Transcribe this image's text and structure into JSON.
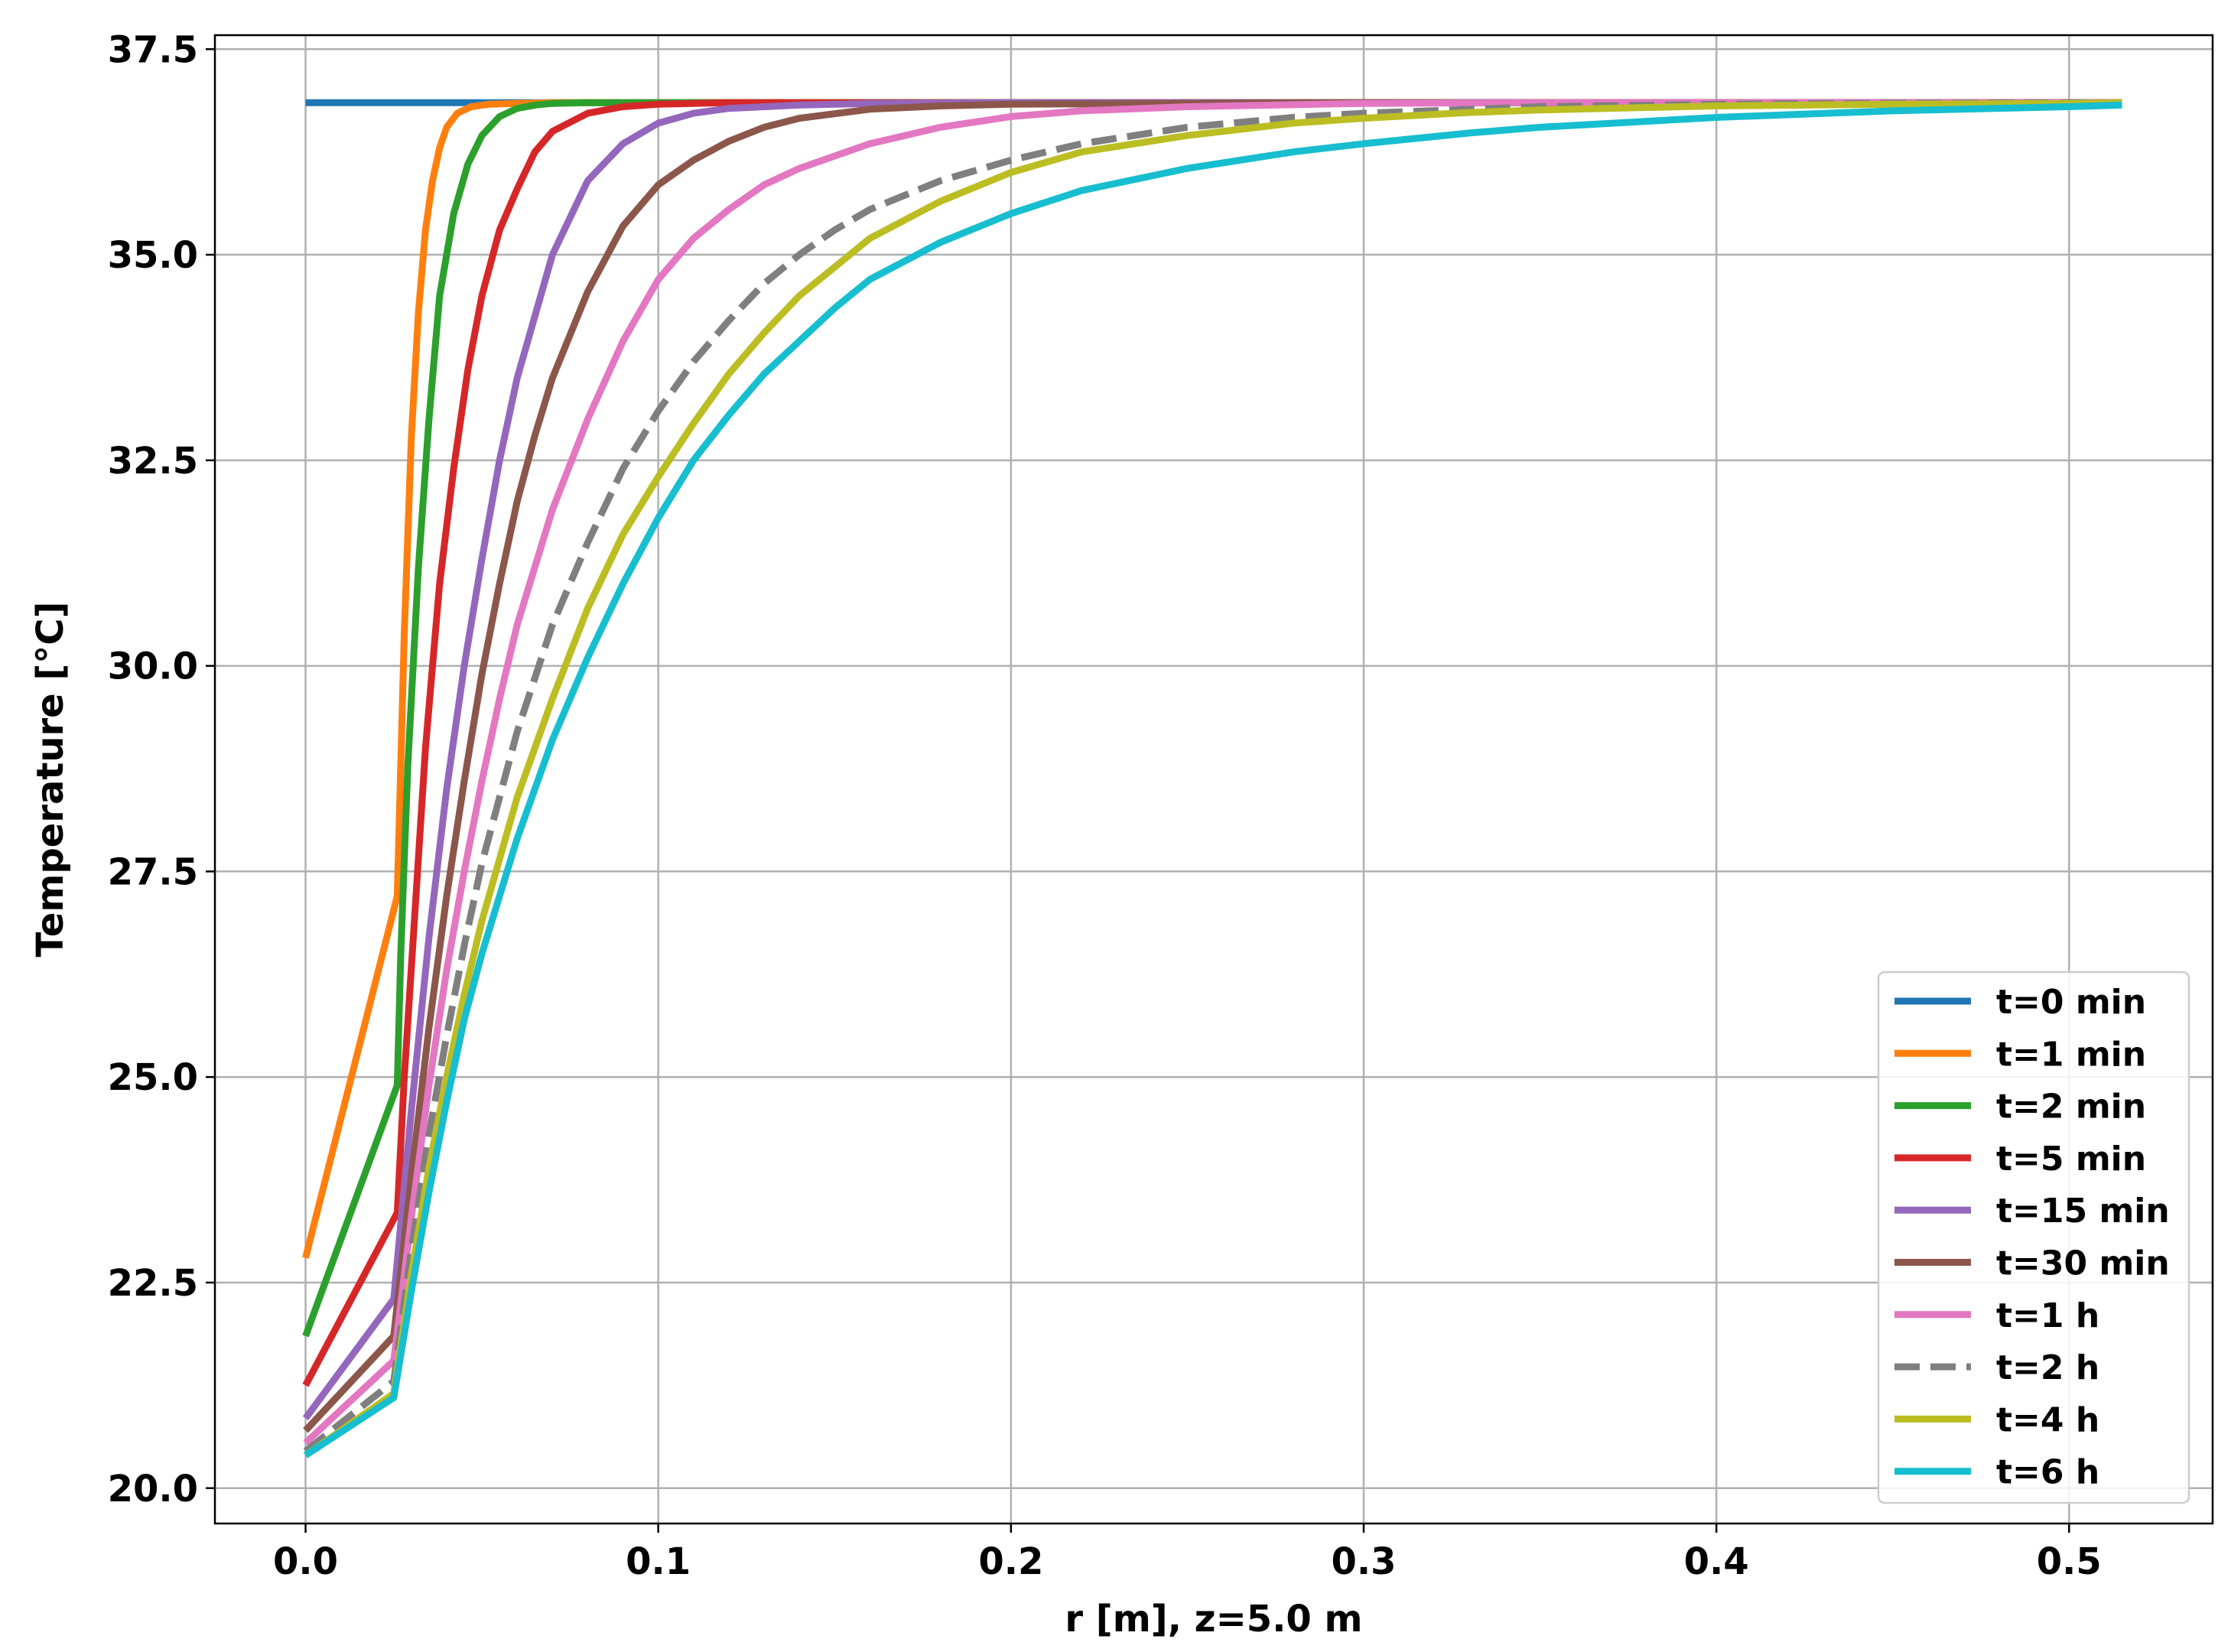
{
  "chart_data": {
    "type": "line",
    "title": "",
    "xlabel": "r [m], z=5.0 m",
    "ylabel": "Temperature [°C]",
    "xlim": [
      -0.0257,
      0.5407
    ],
    "ylim": [
      19.57,
      37.67
    ],
    "xticks": [
      0.0,
      0.1,
      0.2,
      0.3,
      0.4,
      0.5
    ],
    "xtick_labels": [
      "0.0",
      "0.1",
      "0.2",
      "0.3",
      "0.4",
      "0.5"
    ],
    "yticks": [
      20.0,
      22.5,
      25.0,
      27.5,
      30.0,
      32.5,
      35.0,
      37.5
    ],
    "ytick_labels": [
      "20.0",
      "22.5",
      "25.0",
      "27.5",
      "30.0",
      "32.5",
      "35.0",
      "37.5"
    ],
    "grid": true,
    "legend_position": "lower-right",
    "series": [
      {
        "name": "t=0 min",
        "color": "#1f77b4",
        "dash": false,
        "x": [
          0,
          0.026,
          0.1,
          0.2,
          0.3,
          0.4,
          0.515
        ],
        "y": [
          36.85,
          36.85,
          36.85,
          36.85,
          36.85,
          36.85,
          36.85
        ]
      },
      {
        "name": "t=1 min",
        "color": "#ff7f0e",
        "dash": false,
        "x": [
          0,
          0.026,
          0.028,
          0.03,
          0.032,
          0.034,
          0.036,
          0.038,
          0.04,
          0.043,
          0.047,
          0.052,
          0.06,
          0.07,
          0.1,
          0.2,
          0.3,
          0.4,
          0.515
        ],
        "y": [
          22.8,
          27.2,
          30.4,
          32.8,
          34.3,
          35.3,
          35.9,
          36.3,
          36.55,
          36.72,
          36.8,
          36.83,
          36.84,
          36.85,
          36.85,
          36.85,
          36.85,
          36.85,
          36.85
        ]
      },
      {
        "name": "t=2 min",
        "color": "#2ca02c",
        "dash": false,
        "x": [
          0,
          0.026,
          0.027,
          0.029,
          0.032,
          0.035,
          0.038,
          0.042,
          0.046,
          0.05,
          0.055,
          0.06,
          0.065,
          0.07,
          0.08,
          0.1,
          0.2,
          0.3,
          0.4,
          0.515
        ],
        "y": [
          21.85,
          24.9,
          26.5,
          28.8,
          31.2,
          33.0,
          34.5,
          35.5,
          36.1,
          36.45,
          36.68,
          36.78,
          36.82,
          36.84,
          36.85,
          36.85,
          36.85,
          36.85,
          36.85,
          36.85
        ]
      },
      {
        "name": "t=5 min",
        "color": "#d62728",
        "dash": false,
        "x": [
          0,
          0.026,
          0.028,
          0.031,
          0.034,
          0.038,
          0.042,
          0.046,
          0.05,
          0.055,
          0.06,
          0.065,
          0.07,
          0.08,
          0.09,
          0.1,
          0.12,
          0.2,
          0.3,
          0.4,
          0.515
        ],
        "y": [
          21.25,
          23.35,
          25.0,
          27.0,
          29.0,
          31.0,
          32.4,
          33.6,
          34.5,
          35.3,
          35.8,
          36.25,
          36.5,
          36.72,
          36.8,
          36.83,
          36.85,
          36.85,
          36.85,
          36.85,
          36.85
        ]
      },
      {
        "name": "t=15 min",
        "color": "#9467bd",
        "dash": false,
        "x": [
          0,
          0.025,
          0.03,
          0.035,
          0.04,
          0.045,
          0.05,
          0.055,
          0.06,
          0.07,
          0.08,
          0.09,
          0.1,
          0.11,
          0.12,
          0.14,
          0.16,
          0.2,
          0.3,
          0.4,
          0.515
        ],
        "y": [
          20.85,
          22.3,
          24.6,
          26.7,
          28.5,
          30.0,
          31.3,
          32.5,
          33.5,
          35.0,
          35.9,
          36.35,
          36.6,
          36.72,
          36.78,
          36.82,
          36.84,
          36.85,
          36.85,
          36.85,
          36.85
        ]
      },
      {
        "name": "t=30 min",
        "color": "#8c564b",
        "dash": false,
        "x": [
          0,
          0.025,
          0.03,
          0.035,
          0.04,
          0.045,
          0.05,
          0.055,
          0.06,
          0.065,
          0.07,
          0.08,
          0.09,
          0.1,
          0.11,
          0.12,
          0.13,
          0.14,
          0.16,
          0.18,
          0.2,
          0.25,
          0.3,
          0.4,
          0.515
        ],
        "y": [
          20.7,
          21.85,
          23.8,
          25.6,
          27.2,
          28.6,
          29.9,
          31.0,
          32.0,
          32.8,
          33.5,
          34.55,
          35.35,
          35.85,
          36.15,
          36.38,
          36.55,
          36.66,
          36.77,
          36.81,
          36.83,
          36.84,
          36.85,
          36.85,
          36.85
        ]
      },
      {
        "name": "t=1 h",
        "color": "#e377c2",
        "dash": false,
        "x": [
          0,
          0.025,
          0.03,
          0.035,
          0.04,
          0.045,
          0.05,
          0.055,
          0.06,
          0.07,
          0.08,
          0.09,
          0.1,
          0.11,
          0.12,
          0.13,
          0.14,
          0.15,
          0.16,
          0.18,
          0.2,
          0.22,
          0.25,
          0.3,
          0.35,
          0.4,
          0.515
        ],
        "y": [
          20.55,
          21.55,
          23.3,
          24.9,
          26.3,
          27.5,
          28.6,
          29.6,
          30.5,
          31.9,
          33.0,
          33.95,
          34.7,
          35.2,
          35.55,
          35.85,
          36.05,
          36.2,
          36.35,
          36.55,
          36.68,
          36.75,
          36.8,
          36.84,
          36.85,
          36.85,
          36.85
        ]
      },
      {
        "name": "t=2 h",
        "color": "#7f7f7f",
        "dash": true,
        "x": [
          0,
          0.025,
          0.03,
          0.035,
          0.04,
          0.045,
          0.05,
          0.06,
          0.07,
          0.08,
          0.09,
          0.1,
          0.11,
          0.12,
          0.13,
          0.14,
          0.15,
          0.16,
          0.18,
          0.2,
          0.22,
          0.25,
          0.28,
          0.3,
          0.35,
          0.4,
          0.45,
          0.515
        ],
        "y": [
          20.45,
          21.3,
          22.9,
          24.3,
          25.5,
          26.6,
          27.6,
          29.2,
          30.5,
          31.5,
          32.4,
          33.1,
          33.7,
          34.2,
          34.65,
          35.0,
          35.3,
          35.55,
          35.9,
          36.15,
          36.35,
          36.55,
          36.67,
          36.72,
          36.8,
          36.83,
          36.84,
          36.85
        ]
      },
      {
        "name": "t=4 h",
        "color": "#bcbd22",
        "dash": false,
        "x": [
          0,
          0.025,
          0.03,
          0.035,
          0.04,
          0.045,
          0.05,
          0.06,
          0.07,
          0.08,
          0.09,
          0.1,
          0.11,
          0.12,
          0.13,
          0.14,
          0.15,
          0.16,
          0.18,
          0.2,
          0.22,
          0.25,
          0.28,
          0.3,
          0.33,
          0.35,
          0.4,
          0.45,
          0.5,
          0.515
        ],
        "y": [
          20.4,
          21.15,
          22.6,
          23.9,
          25.0,
          26.0,
          26.9,
          28.4,
          29.6,
          30.7,
          31.6,
          32.3,
          32.95,
          33.55,
          34.05,
          34.5,
          34.85,
          35.2,
          35.65,
          36.0,
          36.25,
          36.45,
          36.6,
          36.66,
          36.73,
          36.76,
          36.81,
          36.83,
          36.84,
          36.85
        ]
      },
      {
        "name": "t=6 h",
        "color": "#17becf",
        "dash": false,
        "x": [
          0,
          0.025,
          0.03,
          0.035,
          0.04,
          0.045,
          0.05,
          0.06,
          0.07,
          0.08,
          0.09,
          0.1,
          0.11,
          0.12,
          0.13,
          0.14,
          0.15,
          0.16,
          0.18,
          0.2,
          0.22,
          0.25,
          0.28,
          0.3,
          0.33,
          0.35,
          0.4,
          0.45,
          0.5,
          0.515
        ],
        "y": [
          20.4,
          21.1,
          22.4,
          23.6,
          24.7,
          25.7,
          26.5,
          27.9,
          29.1,
          30.1,
          31.0,
          31.8,
          32.5,
          33.05,
          33.55,
          33.95,
          34.35,
          34.7,
          35.15,
          35.5,
          35.78,
          36.05,
          36.25,
          36.35,
          36.48,
          36.55,
          36.67,
          36.75,
          36.8,
          36.82
        ]
      }
    ]
  }
}
